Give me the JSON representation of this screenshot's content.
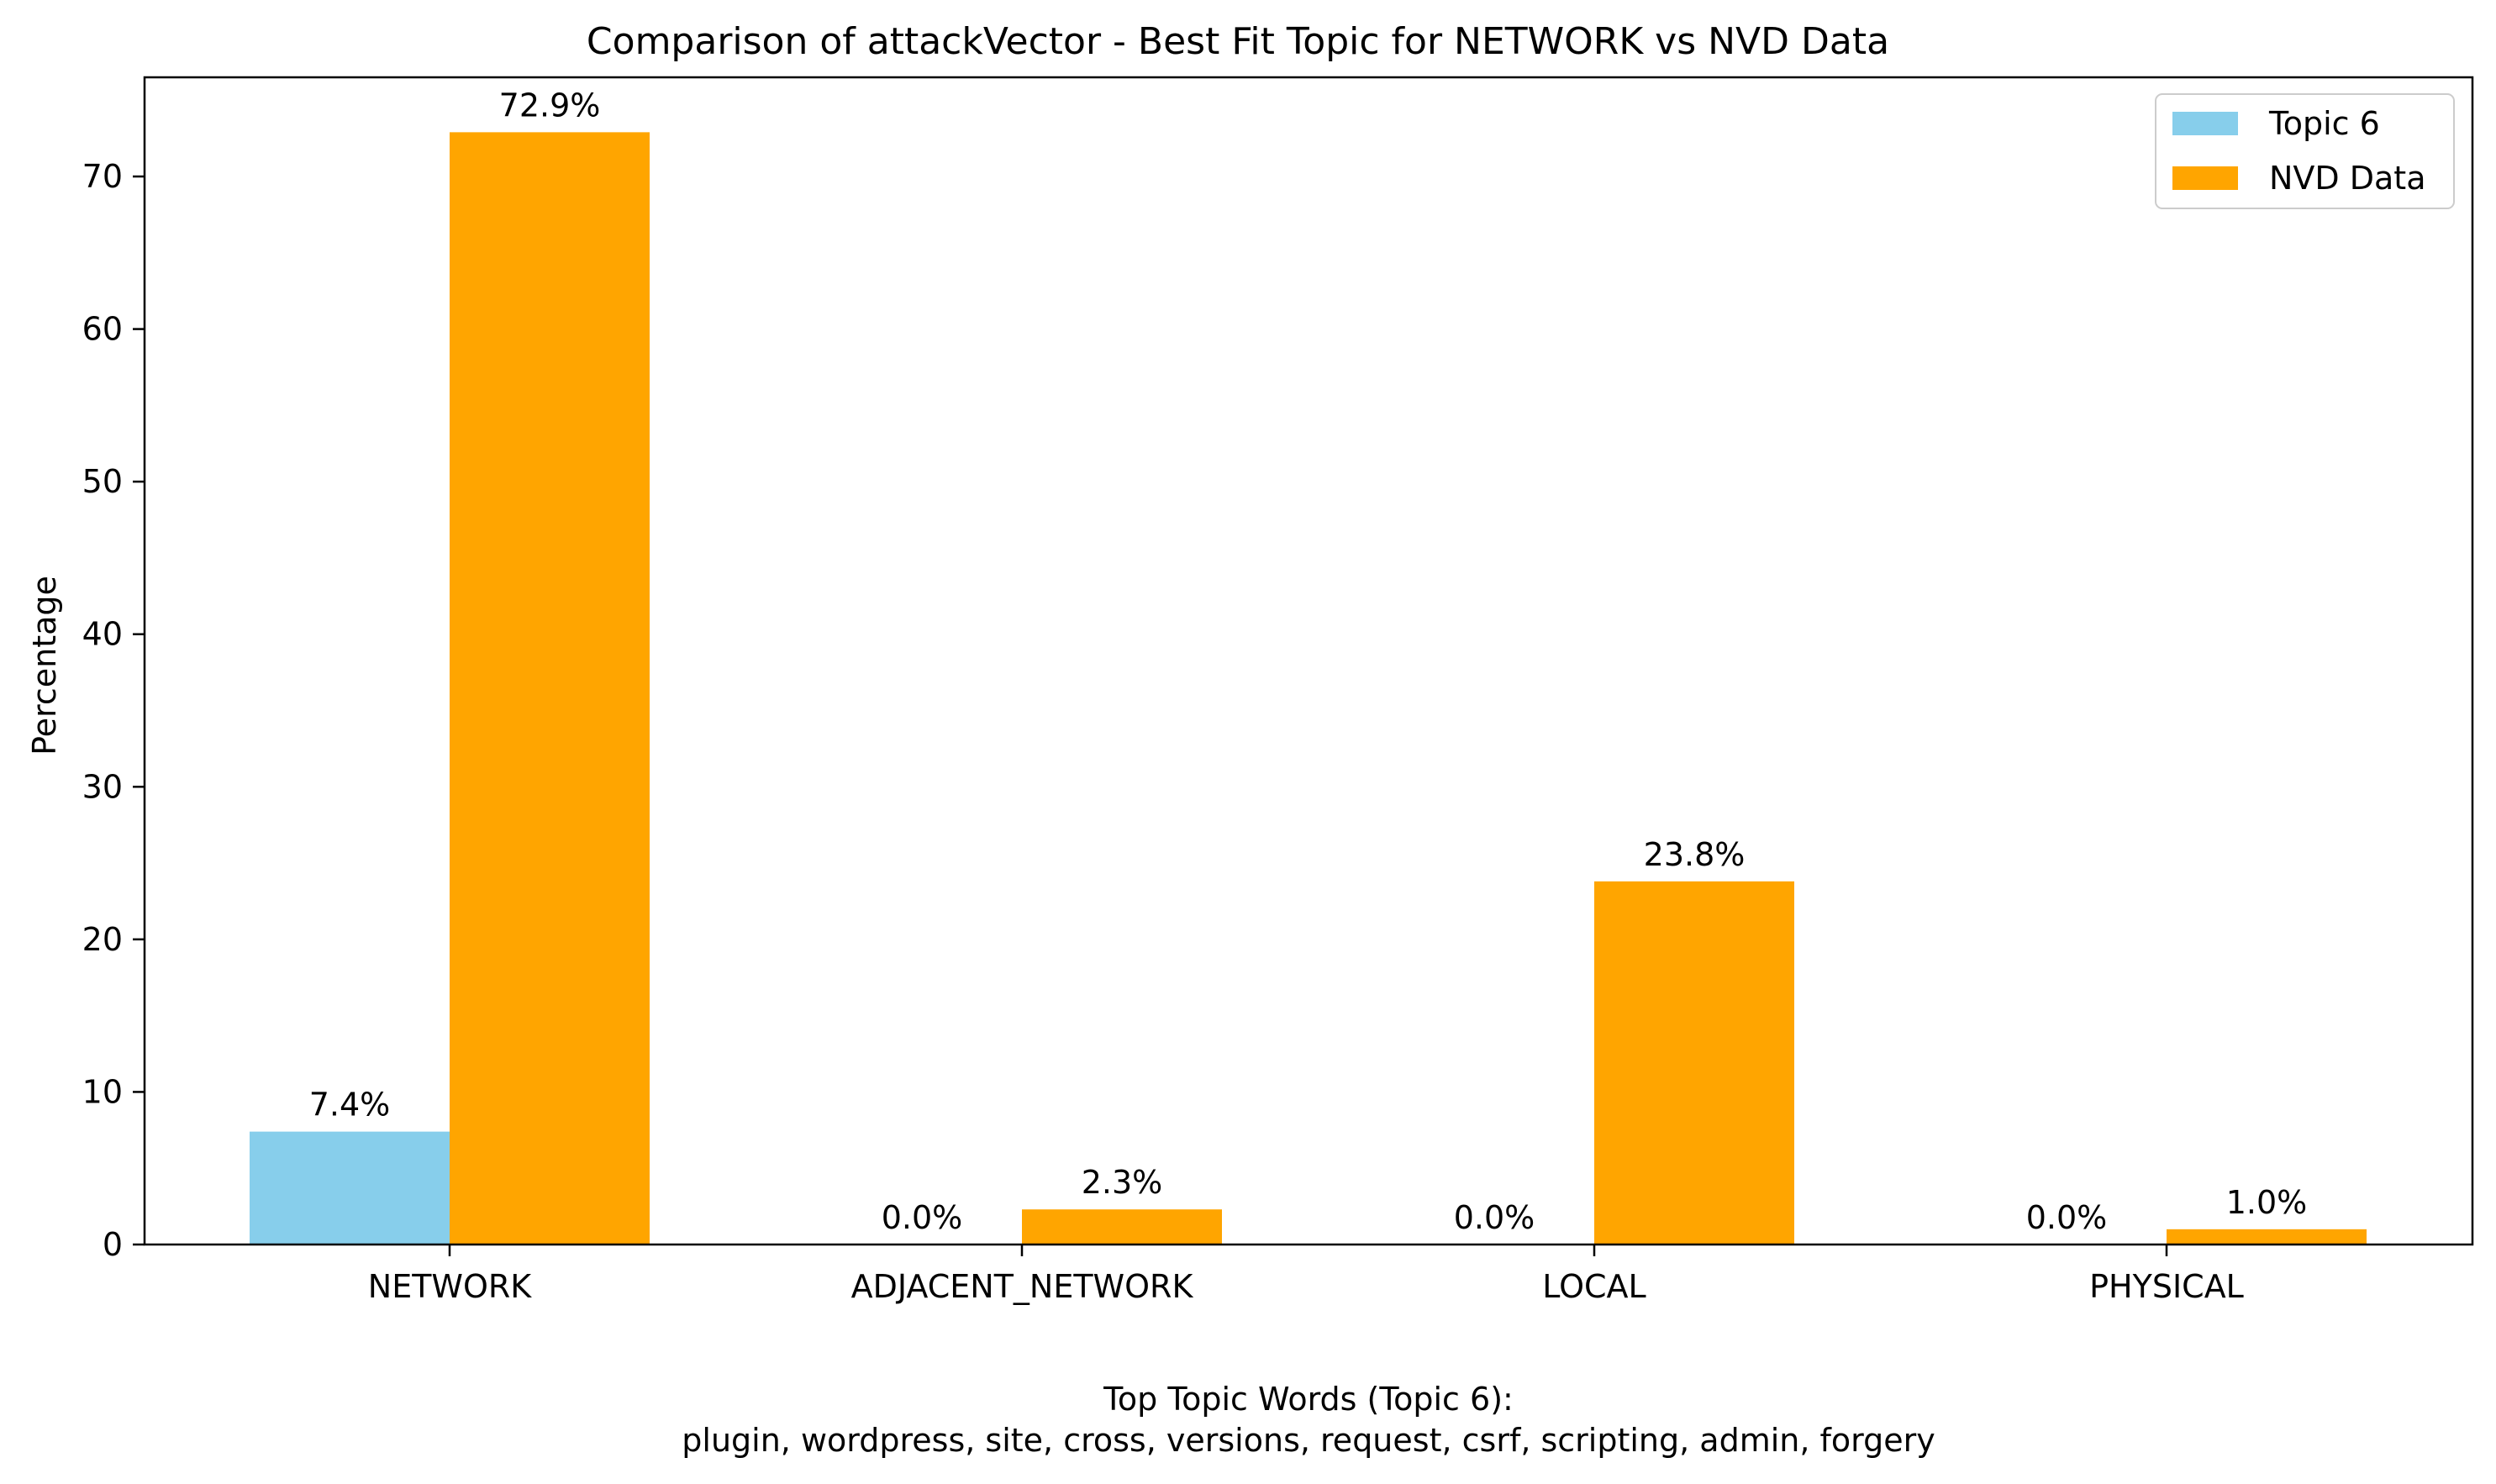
{
  "chart_data": {
    "type": "bar",
    "title": "Comparison of attackVector - Best Fit Topic for NETWORK vs NVD Data",
    "xlabel": "",
    "ylabel": "Percentage",
    "categories": [
      "NETWORK",
      "ADJACENT_NETWORK",
      "LOCAL",
      "PHYSICAL"
    ],
    "series": [
      {
        "name": "Topic 6",
        "color": "#87ceeb",
        "values": [
          7.4,
          0.0,
          0.0,
          0.0
        ],
        "labels": [
          "7.4%",
          "0.0%",
          "0.0%",
          "0.0%"
        ]
      },
      {
        "name": "NVD Data",
        "color": "#ffa500",
        "values": [
          72.9,
          2.3,
          23.8,
          1.0
        ],
        "labels": [
          "72.9%",
          "2.3%",
          "23.8%",
          "1.0%"
        ]
      }
    ],
    "ylim": [
      0,
      76.5
    ],
    "yticks": [
      0,
      10,
      20,
      30,
      40,
      50,
      60,
      70
    ],
    "ytick_labels": [
      "0",
      "10",
      "20",
      "30",
      "40",
      "50",
      "60",
      "70"
    ],
    "grid": false,
    "legend_position": "top-right",
    "footer": {
      "line1": "Top Topic Words (Topic 6):",
      "line2": "plugin,  wordpress,  site,  cross,  versions,  request,  csrf,  scripting,  admin,  forgery"
    }
  }
}
